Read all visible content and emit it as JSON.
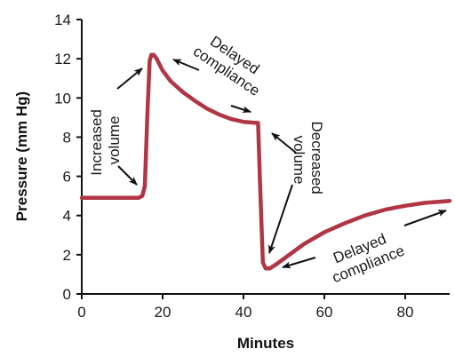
{
  "chart_data": {
    "type": "line",
    "xlabel": "Minutes",
    "ylabel": "Pressure (mm Hg)",
    "xlim": [
      0,
      91
    ],
    "ylim": [
      0,
      14
    ],
    "x_ticks": [
      0,
      20,
      40,
      60,
      80
    ],
    "y_ticks": [
      0,
      2,
      4,
      6,
      8,
      10,
      12,
      14
    ],
    "grid": false,
    "line_color": "#b03545",
    "series": [
      {
        "x": [
          0,
          14,
          15,
          15.6,
          16.2,
          16.8,
          17.2,
          17.8,
          18.5,
          20,
          22,
          25,
          28,
          31,
          34,
          37,
          40,
          43.6,
          43.6,
          44.2,
          44.8,
          45.5,
          46.5,
          48,
          51,
          55,
          60,
          65,
          70,
          75,
          80,
          85,
          91
        ],
        "y": [
          4.9,
          4.9,
          5.0,
          5.5,
          9.0,
          11.9,
          12.2,
          12.2,
          12.0,
          11.4,
          10.85,
          10.3,
          9.85,
          9.45,
          9.15,
          8.92,
          8.78,
          8.72,
          8.72,
          5.0,
          1.6,
          1.3,
          1.3,
          1.5,
          1.95,
          2.55,
          3.15,
          3.6,
          4.0,
          4.3,
          4.5,
          4.65,
          4.75
        ]
      }
    ],
    "annotations": [
      {
        "id": "increased-volume",
        "lines": [
          "Increased",
          "volume"
        ]
      },
      {
        "id": "delayed-compliance-top",
        "lines": [
          "Delayed",
          "compliance"
        ]
      },
      {
        "id": "decreased-volume",
        "lines": [
          "Decreased",
          "volume"
        ]
      },
      {
        "id": "delayed-compliance-bottom",
        "lines": [
          "Delayed",
          "compliance"
        ]
      }
    ]
  }
}
